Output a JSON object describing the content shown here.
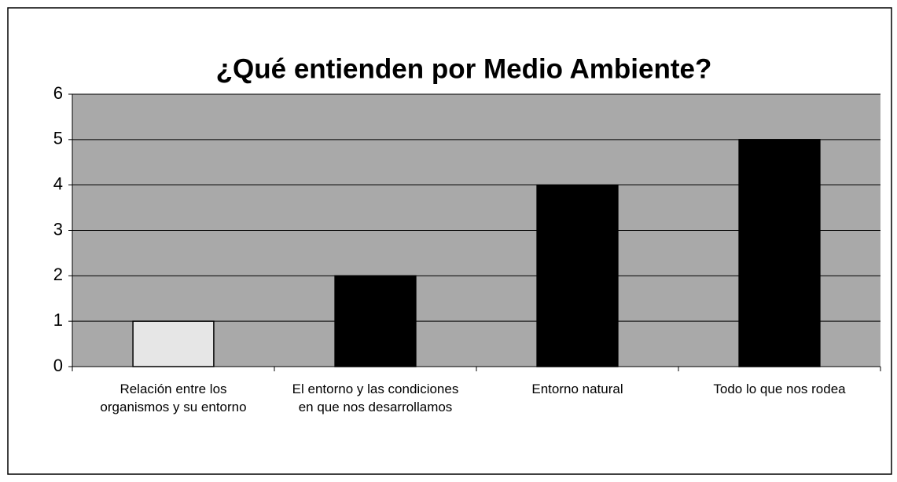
{
  "chart_data": {
    "type": "bar",
    "title": "¿Qué entienden por Medio Ambiente?",
    "categories": [
      "Relación entre los organismos y su entorno",
      "El entorno y las condiciones en que nos desarrollamos",
      "Entorno natural",
      "Todo lo que nos rodea"
    ],
    "values": [
      1,
      2,
      4,
      5
    ],
    "colors": [
      "#e6e6e6",
      "#000000",
      "#000000",
      "#000000"
    ],
    "ylim": [
      0,
      6
    ],
    "yticks": [
      0,
      1,
      2,
      3,
      4,
      5,
      6
    ],
    "grid": true
  }
}
